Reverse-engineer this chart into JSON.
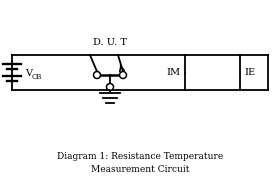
{
  "title": "Diagram 1: Resistance Temperature\nMeasurement Circuit",
  "dut_label": "D. U. T",
  "vcb_label": "V",
  "vcb_sub": "CB",
  "im_label": "IM",
  "ie_label": "IE",
  "bg_color": "#ffffff",
  "line_color": "#000000",
  "lw": 1.3,
  "node_r": 0.01,
  "meter_r": 0.048
}
